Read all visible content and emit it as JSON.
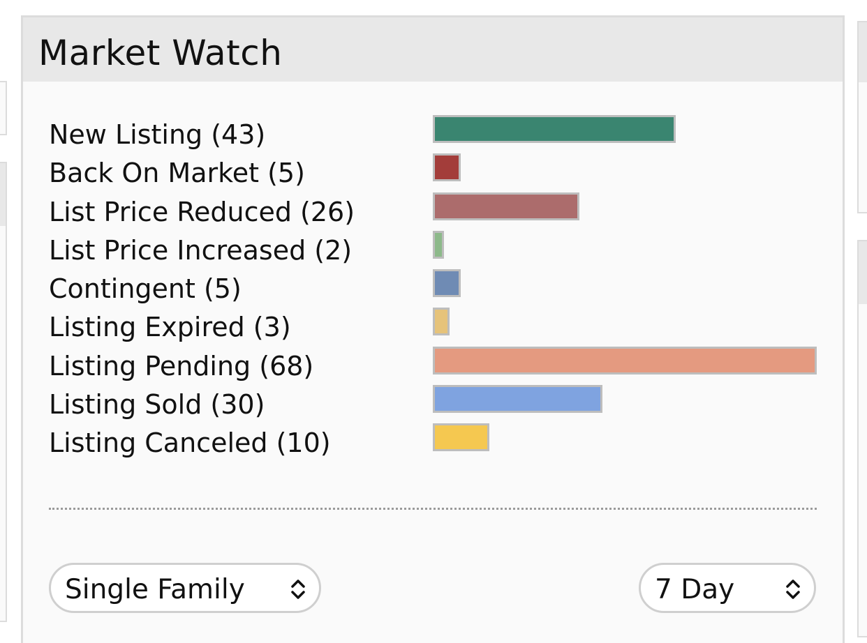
{
  "panel": {
    "title": "Market Watch"
  },
  "chart_data": {
    "type": "bar",
    "orientation": "horizontal",
    "categories": [
      "New Listing (43)",
      "Back On Market (5)",
      "List Price Reduced (26)",
      "List Price Increased (2)",
      "Contingent (5)",
      "Listing Expired (3)",
      "Listing Pending (68)",
      "Listing Sold (30)",
      "Listing Canceled (10)"
    ],
    "values": [
      43,
      5,
      26,
      2,
      5,
      3,
      68,
      30,
      10
    ],
    "colors": [
      "#3a8570",
      "#a33d3a",
      "#ac6c6c",
      "#8db98a",
      "#6f8bb4",
      "#e6c37a",
      "#e49a80",
      "#7fa3e0",
      "#f5c850"
    ],
    "xlim": [
      0,
      68
    ],
    "grid": false,
    "legend": "none"
  },
  "filters": {
    "property_type": {
      "selected": "Single Family",
      "icon": "chevron-up-down-icon"
    },
    "period": {
      "selected": "7 Day",
      "icon": "chevron-up-down-icon"
    }
  }
}
